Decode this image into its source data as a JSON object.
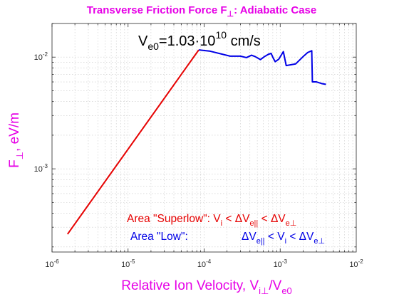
{
  "chart_data": {
    "type": "line",
    "title": {
      "text": "Transverse Friction Force F",
      "sub": "⊥",
      "tail": ": Adiabatic Case"
    },
    "xlabel": {
      "text": "Relative Ion Velocity, V",
      "sub1": "i⊥",
      "mid": "/V",
      "sub2": "e0"
    },
    "ylabel": {
      "text": "F",
      "sub": "⊥",
      "tail": ", eV/m"
    },
    "x_scale": "log",
    "y_scale": "log",
    "xlim": [
      1e-06,
      0.01
    ],
    "ylim": [
      0.00018,
      0.02
    ],
    "grid": true,
    "x_ticks": [
      {
        "value": 1e-06,
        "base": "10",
        "exp": "-6"
      },
      {
        "value": 1e-05,
        "base": "10",
        "exp": "-5"
      },
      {
        "value": 0.0001,
        "base": "10",
        "exp": "-4"
      },
      {
        "value": 0.001,
        "base": "10",
        "exp": "-3"
      },
      {
        "value": 0.01,
        "base": "10",
        "exp": "-2"
      }
    ],
    "y_ticks": [
      {
        "value": 0.001,
        "base": "10",
        "exp": "-3"
      },
      {
        "value": 0.01,
        "base": "10",
        "exp": "-2"
      }
    ],
    "annotation": {
      "prefix": "V",
      "sub": "e0",
      "mid": "=1.03·10",
      "sup": "10",
      "tail": " cm/s"
    },
    "legend_lines": [
      {
        "color": "#e60000",
        "text": "Area \"Superlow\": V",
        "sub1": "i",
        "mid1": " < ΔV",
        "sub2": "e||",
        "mid2": " < ΔV",
        "sub3": "e⊥"
      },
      {
        "color": "#0000e6",
        "text": "Area \"Low\":",
        "text2": "ΔV",
        "sub1": "e||",
        "mid1": " < V",
        "sub2": "i",
        "mid2": " < ΔV",
        "sub3": "e⊥"
      }
    ],
    "series": [
      {
        "color": "#e60000",
        "x": [
          1.6e-06,
          8.5e-05
        ],
        "y": [
          0.00026,
          0.0116
        ]
      },
      {
        "color": "#0000e6",
        "x": [
          8.5e-05,
          0.00012,
          0.00022,
          0.0003,
          0.00036,
          0.00042,
          0.00047,
          0.00055,
          0.00062,
          0.0007,
          0.00076,
          0.00081,
          0.00086,
          0.00096,
          0.00104,
          0.0011,
          0.0012,
          0.0016,
          0.002,
          0.0023,
          0.0026,
          0.00265,
          0.003,
          0.0035,
          0.004
        ],
        "y": [
          0.0116,
          0.0113,
          0.0102,
          0.0102,
          0.0099,
          0.0104,
          0.0101,
          0.0095,
          0.0101,
          0.0106,
          0.0108,
          0.0098,
          0.0091,
          0.0096,
          0.0105,
          0.0112,
          0.0084,
          0.0087,
          0.0101,
          0.011,
          0.0114,
          0.006,
          0.006,
          0.0058,
          0.0057
        ]
      }
    ]
  }
}
